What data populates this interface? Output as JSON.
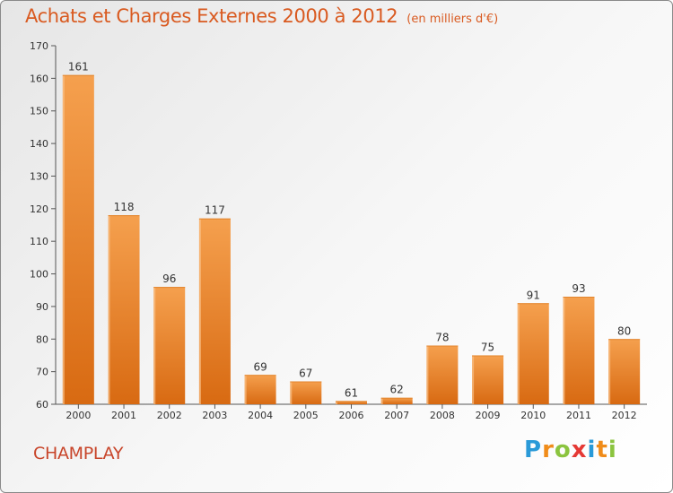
{
  "title": "Achats et Charges Externes 2000 à 2012",
  "subtitle": "(en milliers d'€)",
  "commune": "CHAMPLAY",
  "logo": {
    "letters": [
      "P",
      "r",
      "o",
      "x",
      "i",
      "t",
      "i"
    ],
    "colors": [
      "#2a9ad8",
      "#f08c1a",
      "#8bc43f",
      "#e53935",
      "#2a9ad8",
      "#f08c1a",
      "#8bc43f"
    ]
  },
  "colors": {
    "bar_light": "#f5a04e",
    "bar_dark": "#d86a12",
    "title": "#d95a20",
    "commune": "#c8452a"
  },
  "chart_data": {
    "type": "bar",
    "title": "Achats et Charges Externes 2000 à 2012",
    "subtitle": "(en milliers d'€)",
    "xlabel": "",
    "ylabel": "",
    "categories": [
      "2000",
      "2001",
      "2002",
      "2003",
      "2004",
      "2005",
      "2006",
      "2007",
      "2008",
      "2009",
      "2010",
      "2011",
      "2012"
    ],
    "values": [
      161,
      118,
      96,
      117,
      69,
      67,
      61,
      62,
      78,
      75,
      91,
      93,
      80
    ],
    "ylim": [
      60,
      170
    ],
    "yticks": [
      60,
      70,
      80,
      90,
      100,
      110,
      120,
      130,
      140,
      150,
      160,
      170
    ],
    "grid": false,
    "legend": "none"
  }
}
